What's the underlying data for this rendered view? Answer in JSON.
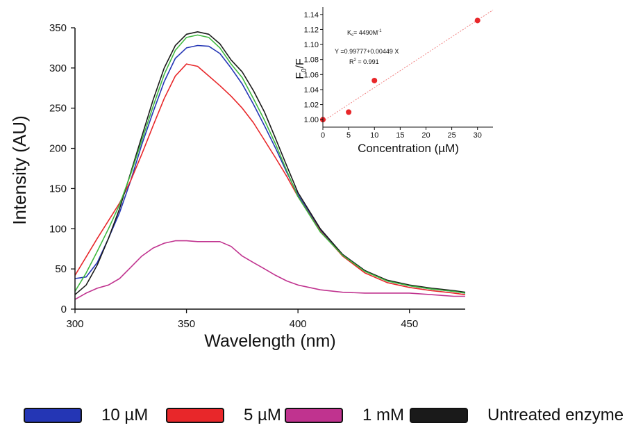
{
  "chart_data": [
    {
      "type": "line",
      "xlabel": "Wavelength (nm)",
      "ylabel": "Intensity (AU)",
      "xlim": [
        300,
        475
      ],
      "ylim": [
        0,
        350
      ],
      "xticks": [
        300,
        350,
        400,
        450
      ],
      "yticks": [
        0,
        50,
        100,
        150,
        200,
        250,
        300,
        350
      ],
      "grid": false,
      "series": [
        {
          "name": "10 µM",
          "color": "#2436b5",
          "x": [
            300,
            305,
            310,
            315,
            320,
            325,
            330,
            335,
            340,
            345,
            350,
            355,
            360,
            365,
            370,
            375,
            380,
            385,
            390,
            395,
            400,
            410,
            420,
            430,
            440,
            450,
            460,
            470,
            475
          ],
          "y": [
            38,
            40,
            58,
            88,
            120,
            160,
            205,
            245,
            283,
            312,
            325,
            328,
            327,
            318,
            300,
            280,
            255,
            228,
            200,
            170,
            142,
            98,
            68,
            48,
            35,
            29,
            25,
            22,
            20
          ]
        },
        {
          "name": "5 µM",
          "color": "#e8272a",
          "x": [
            300,
            305,
            310,
            315,
            320,
            325,
            330,
            335,
            340,
            345,
            350,
            355,
            360,
            365,
            370,
            375,
            380,
            385,
            390,
            395,
            400,
            410,
            420,
            430,
            440,
            450,
            460,
            470,
            475
          ],
          "y": [
            42,
            65,
            88,
            110,
            132,
            160,
            193,
            228,
            262,
            290,
            305,
            302,
            290,
            278,
            265,
            250,
            232,
            210,
            188,
            165,
            140,
            97,
            66,
            45,
            33,
            27,
            23,
            20,
            18
          ]
        },
        {
          "name": "1 mM",
          "color": "#c0338f",
          "x": [
            300,
            305,
            310,
            315,
            320,
            325,
            330,
            335,
            340,
            345,
            350,
            355,
            360,
            365,
            370,
            375,
            380,
            385,
            390,
            395,
            400,
            410,
            420,
            430,
            440,
            450,
            460,
            470,
            475
          ],
          "y": [
            12,
            20,
            26,
            30,
            38,
            52,
            66,
            76,
            82,
            85,
            85,
            84,
            84,
            84,
            78,
            66,
            58,
            50,
            42,
            35,
            30,
            24,
            21,
            20,
            20,
            20,
            18,
            16,
            16
          ]
        },
        {
          "name": "Untreated enzyme",
          "color": "#1a1a1a",
          "x": [
            300,
            305,
            310,
            315,
            320,
            325,
            330,
            335,
            340,
            345,
            350,
            355,
            360,
            365,
            370,
            375,
            380,
            385,
            390,
            395,
            400,
            410,
            420,
            430,
            440,
            450,
            460,
            470,
            475
          ],
          "y": [
            18,
            30,
            55,
            88,
            125,
            170,
            215,
            260,
            300,
            328,
            342,
            345,
            342,
            330,
            310,
            295,
            272,
            245,
            212,
            178,
            145,
            100,
            68,
            48,
            36,
            30,
            26,
            23,
            21
          ]
        },
        {
          "name": "",
          "color": "#3fb83f",
          "x": [
            300,
            305,
            310,
            315,
            320,
            325,
            330,
            335,
            340,
            345,
            350,
            355,
            360,
            365,
            370,
            375,
            380,
            385,
            390,
            395,
            400,
            410,
            420,
            430,
            440,
            450,
            460,
            470,
            475
          ],
          "y": [
            22,
            45,
            72,
            100,
            130,
            168,
            210,
            252,
            292,
            322,
            338,
            341,
            338,
            325,
            305,
            288,
            262,
            235,
            205,
            172,
            140,
            96,
            67,
            47,
            35,
            29,
            25,
            22,
            20
          ]
        }
      ]
    },
    {
      "type": "scatter",
      "xlabel": "Concentration (µM)",
      "ylabel": "F0/F",
      "ylabel_main": "F",
      "ylabel_sub": "0",
      "ylabel_tail": "/F",
      "xlim": [
        0,
        33
      ],
      "ylim": [
        0.99,
        1.15
      ],
      "xticks": [
        0,
        5,
        10,
        15,
        20,
        25,
        30
      ],
      "yticks": [
        "1.00",
        "1.02",
        "1.04",
        "1.06",
        "1.08",
        "1.10",
        "1.12",
        "1.14"
      ],
      "points": {
        "x": [
          0,
          5,
          10,
          30
        ],
        "y": [
          1.0,
          1.01,
          1.052,
          1.132
        ],
        "color": "#e8272a"
      },
      "fit": {
        "intercept": 0.99777,
        "slope": 0.00449,
        "color": "#f08080",
        "x_range": [
          0,
          33
        ]
      },
      "annotations": {
        "ksv_main": "K",
        "ksv_sub": "s",
        "ksv_tail": "= 4490M",
        "ksv_sup": "-1",
        "equation": "Y =0.99777+0.00449 X",
        "r2_main": "R",
        "r2_sup": "2",
        "r2_tail": " = 0.991"
      }
    }
  ],
  "legend": [
    {
      "label": "10 µM",
      "color": "#2436b5"
    },
    {
      "label": "5 µM",
      "color": "#e8272a"
    },
    {
      "label": "1 mM",
      "color": "#c0338f"
    },
    {
      "label": "Untreated enzyme",
      "color": "#1a1a1a"
    }
  ]
}
